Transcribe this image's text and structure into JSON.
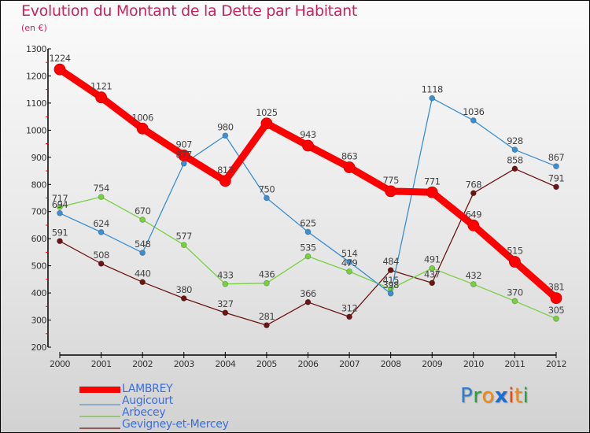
{
  "chart_data": {
    "type": "line",
    "title": "Evolution du Montant de la Dette par Habitant",
    "subtitle": "(en €)",
    "xlabel": "",
    "ylabel": "",
    "x": [
      "2000",
      "2001",
      "2002",
      "2003",
      "2004",
      "2005",
      "2006",
      "2007",
      "2008",
      "2009",
      "2010",
      "2011",
      "2012"
    ],
    "ylim": [
      200,
      1300
    ],
    "yticks": [
      "200",
      "300",
      "400",
      "500",
      "600",
      "700",
      "800",
      "900",
      "1000",
      "1100",
      "1200",
      "1300"
    ],
    "grid": false,
    "legend_position": "bottom-left",
    "series": [
      {
        "name": "LAMBREY",
        "color": "#ff0000",
        "values": [
          1224,
          1121,
          1006,
          907,
          813,
          1025,
          943,
          863,
          775,
          771,
          649,
          515,
          381
        ]
      },
      {
        "name": "Augicourt",
        "color": "#3b8ed0",
        "values": [
          694,
          624,
          548,
          877,
          980,
          750,
          625,
          514,
          398,
          1118,
          1036,
          928,
          867
        ]
      },
      {
        "name": "Arbecey",
        "color": "#77d041",
        "values": [
          717,
          754,
          670,
          577,
          433,
          436,
          535,
          479,
          415,
          491,
          432,
          370,
          305
        ]
      },
      {
        "name": "Gevigney-et-Mercey",
        "color": "#6b1414",
        "values": [
          591,
          508,
          440,
          380,
          327,
          281,
          366,
          312,
          484,
          437,
          768,
          858,
          791
        ]
      }
    ]
  },
  "legend": {
    "items": [
      {
        "label": "LAMBREY",
        "color": "#ff0000"
      },
      {
        "label": "Augicourt",
        "color": "#8fa9c4"
      },
      {
        "label": "Arbecey",
        "color": "#98c67a"
      },
      {
        "label": "Gevigney-et-Mercey",
        "color": "#8e5a5a"
      }
    ]
  },
  "logo": {
    "letters": [
      {
        "ch": "P",
        "color": "#2a7fd4"
      },
      {
        "ch": "r",
        "color": "#2aa040"
      },
      {
        "ch": "o",
        "color": "#f08a10"
      },
      {
        "ch": "x",
        "color": "#1f6fd0"
      },
      {
        "ch": "i",
        "color": "#e84a10"
      },
      {
        "ch": "t",
        "color": "#f08a10"
      },
      {
        "ch": "i",
        "color": "#2aa040"
      }
    ]
  }
}
